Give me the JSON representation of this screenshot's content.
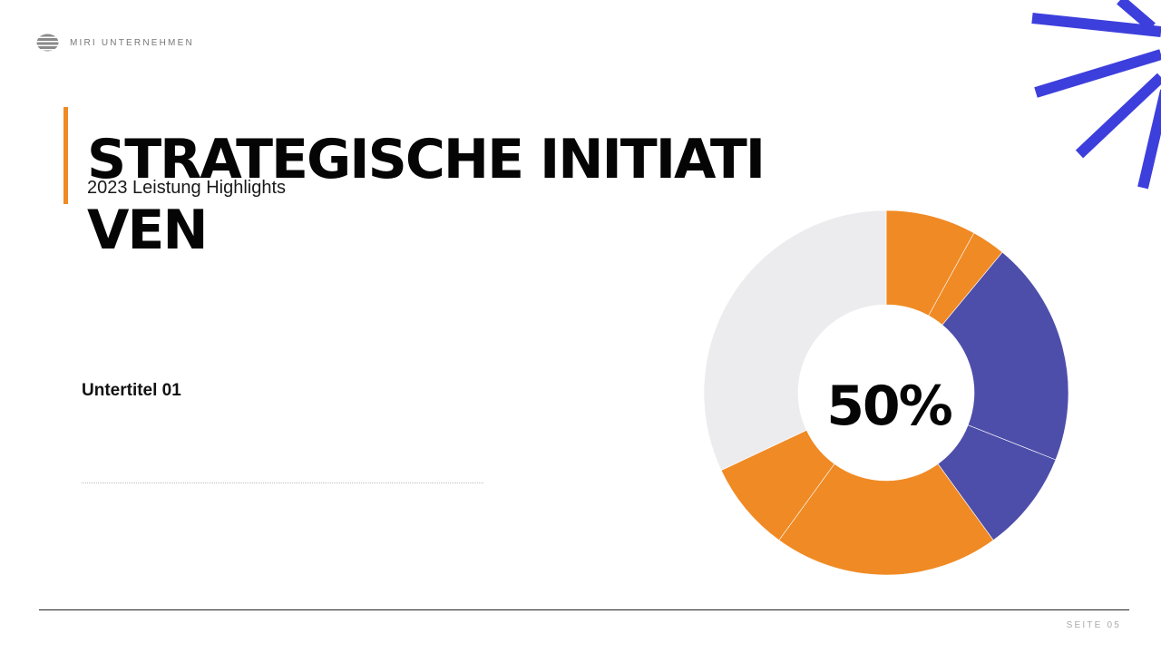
{
  "brand": {
    "name": "MIRI UNTERNEHMEN",
    "logo_icon": "striped-circle-logo"
  },
  "slide": {
    "title": "STRATEGISCHE INITIATIVEN",
    "subtitle": "2023 Leistung Highlights",
    "section_heading": "Untertitel 01",
    "body_text": ""
  },
  "colors": {
    "accent": "#f08a24",
    "brand_blue": "#3d3fdc",
    "chart_purple": "#4d4eaa",
    "chart_light": "#ececee",
    "text": "#050505"
  },
  "chart_data": {
    "type": "pie",
    "donut": true,
    "center_label": "50%",
    "slices": [
      {
        "value": 8,
        "color": "#f08a24"
      },
      {
        "value": 3,
        "color": "#f08a24"
      },
      {
        "value": 20,
        "color": "#4d4eaa"
      },
      {
        "value": 9,
        "color": "#4d4eaa"
      },
      {
        "value": 20,
        "color": "#f08a24"
      },
      {
        "value": 8,
        "color": "#f08a24"
      },
      {
        "value": 32,
        "color": "#ececee"
      }
    ]
  },
  "footer": {
    "page_label": "SEITE 05"
  }
}
